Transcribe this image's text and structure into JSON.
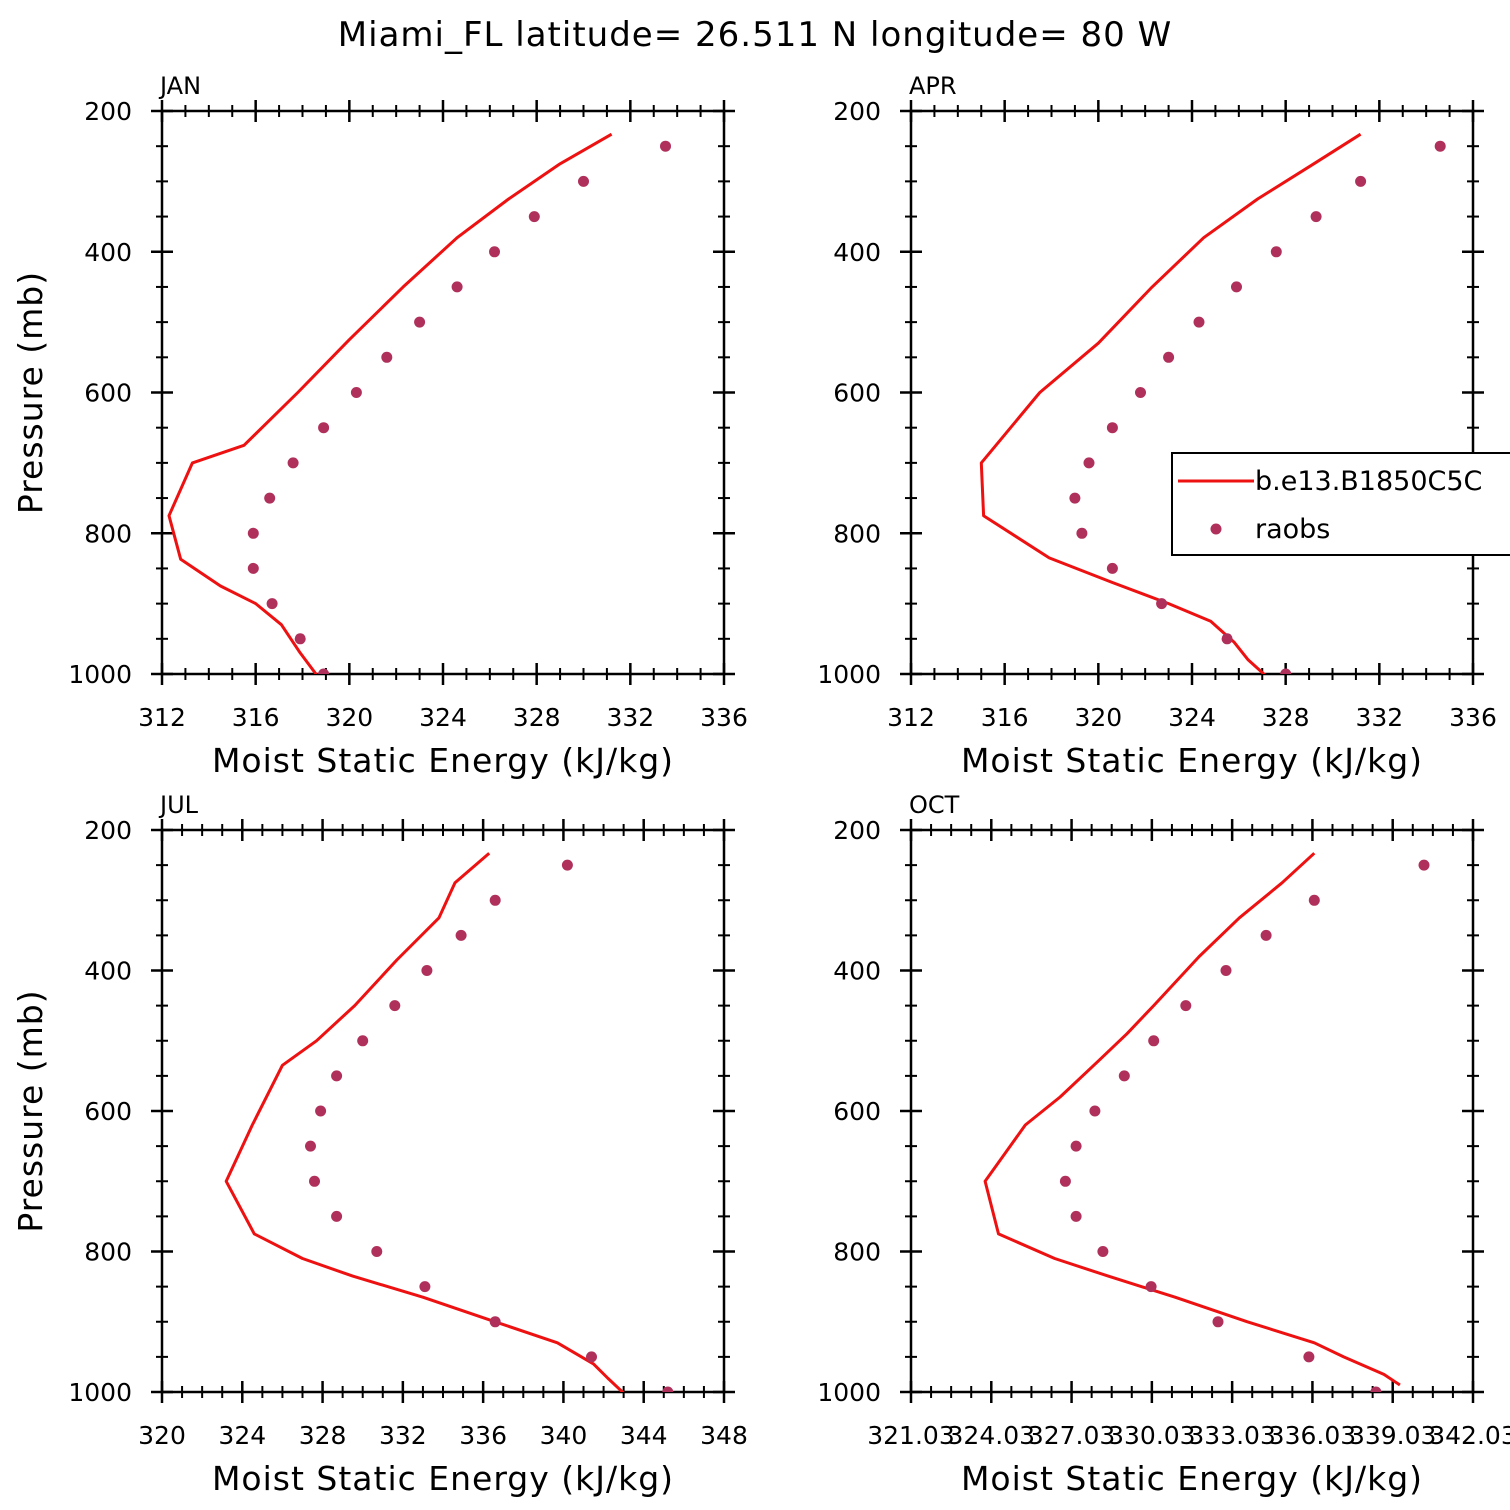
{
  "figure": {
    "title": "Miami_FL  latitude= 26.511 N longitude= 80 W"
  },
  "colors": {
    "model_line": "#ee1111",
    "obs_marker": "#b0305c",
    "axes": "#000000"
  },
  "chart_data": [
    {
      "type": "line",
      "panel": "JAN",
      "xlabel": "Moist Static Energy (kJ/kg)",
      "ylabel": "Pressure (mb)",
      "xlim": [
        312,
        336
      ],
      "ylim": [
        1000,
        200
      ],
      "xticks": [
        312,
        316,
        320,
        324,
        328,
        332,
        336
      ],
      "xtick_labels": [
        "312",
        "316",
        "320",
        "324",
        "328",
        "332",
        "336"
      ],
      "yticks": [
        200,
        400,
        600,
        800,
        1000
      ],
      "ytick_labels": [
        "200",
        "400",
        "600",
        "800",
        "1000"
      ],
      "series": [
        {
          "style": "line",
          "x": [
            331.2,
            329.0,
            326.8,
            324.6,
            322.3,
            320.0,
            317.8,
            315.5,
            313.3,
            312.3,
            312.8,
            314.5,
            316.0,
            317.1,
            317.9,
            318.8
          ],
          "y": [
            233,
            275,
            325,
            380,
            450,
            525,
            600,
            675,
            700,
            775,
            837,
            875,
            900,
            930,
            970,
            1010
          ]
        },
        {
          "name": "raobs",
          "style": "markers",
          "x": [
            333.5,
            330.0,
            327.9,
            326.2,
            324.6,
            323.0,
            321.6,
            320.3,
            318.9,
            317.6,
            316.6,
            315.9,
            315.9,
            316.7,
            317.9,
            318.9
          ],
          "y": [
            250,
            300,
            350,
            400,
            450,
            500,
            550,
            600,
            650,
            700,
            750,
            800,
            850,
            900,
            950,
            1000
          ]
        }
      ]
    },
    {
      "type": "line",
      "panel": "APR",
      "xlabel": "Moist Static Energy (kJ/kg)",
      "ylabel": "",
      "xlim": [
        312,
        336
      ],
      "ylim": [
        1000,
        200
      ],
      "xticks": [
        312,
        316,
        320,
        324,
        328,
        332,
        336
      ],
      "xtick_labels": [
        "312",
        "316",
        "320",
        "324",
        "328",
        "332",
        "336"
      ],
      "yticks": [
        200,
        400,
        600,
        800,
        1000
      ],
      "ytick_labels": [
        "200",
        "400",
        "600",
        "800",
        "1000"
      ],
      "legend": {
        "placement": "right",
        "entries": [
          "b.e13.B1850C5C",
          "raobs"
        ]
      },
      "series": [
        {
          "name": "b.e13.B1850C5C",
          "style": "line",
          "x": [
            331.2,
            329.2,
            326.8,
            324.5,
            322.3,
            320.0,
            317.5,
            315.0,
            315.1,
            317.9,
            320.6,
            323.0,
            324.8,
            325.8,
            326.4,
            327.3
          ],
          "y": [
            233,
            275,
            325,
            380,
            450,
            530,
            600,
            700,
            775,
            835,
            870,
            900,
            925,
            955,
            980,
            1007
          ]
        },
        {
          "name": "raobs",
          "style": "markers",
          "x": [
            334.6,
            331.2,
            329.3,
            327.6,
            325.9,
            324.3,
            323.0,
            321.8,
            320.6,
            319.6,
            319.0,
            319.3,
            320.6,
            322.7,
            325.5,
            328.0
          ],
          "y": [
            250,
            300,
            350,
            400,
            450,
            500,
            550,
            600,
            650,
            700,
            750,
            800,
            850,
            900,
            950,
            1000
          ]
        }
      ]
    },
    {
      "type": "line",
      "panel": "JUL",
      "xlabel": "Moist Static Energy (kJ/kg)",
      "ylabel": "Pressure (mb)",
      "xlim": [
        320,
        348
      ],
      "ylim": [
        1000,
        200
      ],
      "xticks": [
        320,
        324,
        328,
        332,
        336,
        340,
        344,
        348
      ],
      "xtick_labels": [
        "320",
        "324",
        "328",
        "332",
        "336",
        "340",
        "344",
        "348"
      ],
      "yticks": [
        200,
        400,
        600,
        800,
        1000
      ],
      "ytick_labels": [
        "200",
        "400",
        "600",
        "800",
        "1000"
      ],
      "series": [
        {
          "style": "line",
          "x": [
            336.3,
            334.6,
            333.8,
            331.7,
            329.6,
            327.7,
            326.0,
            324.5,
            323.2,
            324.6,
            327.0,
            329.5,
            333.0,
            336.6,
            339.7,
            341.5,
            342.2,
            343.2
          ],
          "y": [
            233,
            275,
            325,
            385,
            450,
            500,
            535,
            620,
            700,
            775,
            810,
            835,
            865,
            900,
            930,
            960,
            980,
            1007
          ]
        },
        {
          "name": "raobs",
          "style": "markers",
          "x": [
            340.2,
            336.6,
            334.9,
            333.2,
            331.6,
            330.0,
            328.7,
            327.9,
            327.4,
            327.6,
            328.7,
            330.7,
            333.1,
            336.6,
            341.4,
            345.2
          ],
          "y": [
            250,
            300,
            350,
            400,
            450,
            500,
            550,
            600,
            650,
            700,
            750,
            800,
            850,
            900,
            950,
            1000
          ]
        }
      ]
    },
    {
      "type": "line",
      "panel": "OCT",
      "xlabel": "Moist Static Energy (kJ/kg)",
      "ylabel": "",
      "xlim": [
        321.03,
        342.03
      ],
      "ylim": [
        1000,
        200
      ],
      "xticks": [
        321.03,
        324.03,
        327.03,
        330.03,
        333.03,
        336.03,
        339.03,
        342.03
      ],
      "xtick_labels": [
        "321.03",
        "324.03",
        "327.03",
        "330.03",
        "333.03",
        "336.03",
        "339.03",
        "342.03"
      ],
      "yticks": [
        200,
        400,
        600,
        800,
        1000
      ],
      "ytick_labels": [
        "200",
        "400",
        "600",
        "800",
        "1000"
      ],
      "series": [
        {
          "style": "line",
          "x": [
            336.1,
            334.9,
            333.3,
            331.8,
            330.1,
            329.1,
            328.0,
            326.6,
            325.3,
            323.8,
            324.3,
            326.4,
            328.4,
            330.9,
            333.6,
            336.1,
            337.2,
            338.7,
            339.3
          ],
          "y": [
            233,
            275,
            325,
            380,
            450,
            490,
            530,
            580,
            620,
            700,
            775,
            810,
            835,
            865,
            900,
            930,
            950,
            975,
            990
          ]
        },
        {
          "name": "raobs",
          "style": "markers",
          "x": [
            340.2,
            336.1,
            334.3,
            332.8,
            331.3,
            330.1,
            329.0,
            327.9,
            327.2,
            326.8,
            327.2,
            328.2,
            330.0,
            332.5,
            335.9,
            338.4
          ],
          "y": [
            250,
            300,
            350,
            400,
            450,
            500,
            550,
            600,
            650,
            700,
            750,
            800,
            850,
            900,
            950,
            1000
          ]
        }
      ]
    }
  ]
}
